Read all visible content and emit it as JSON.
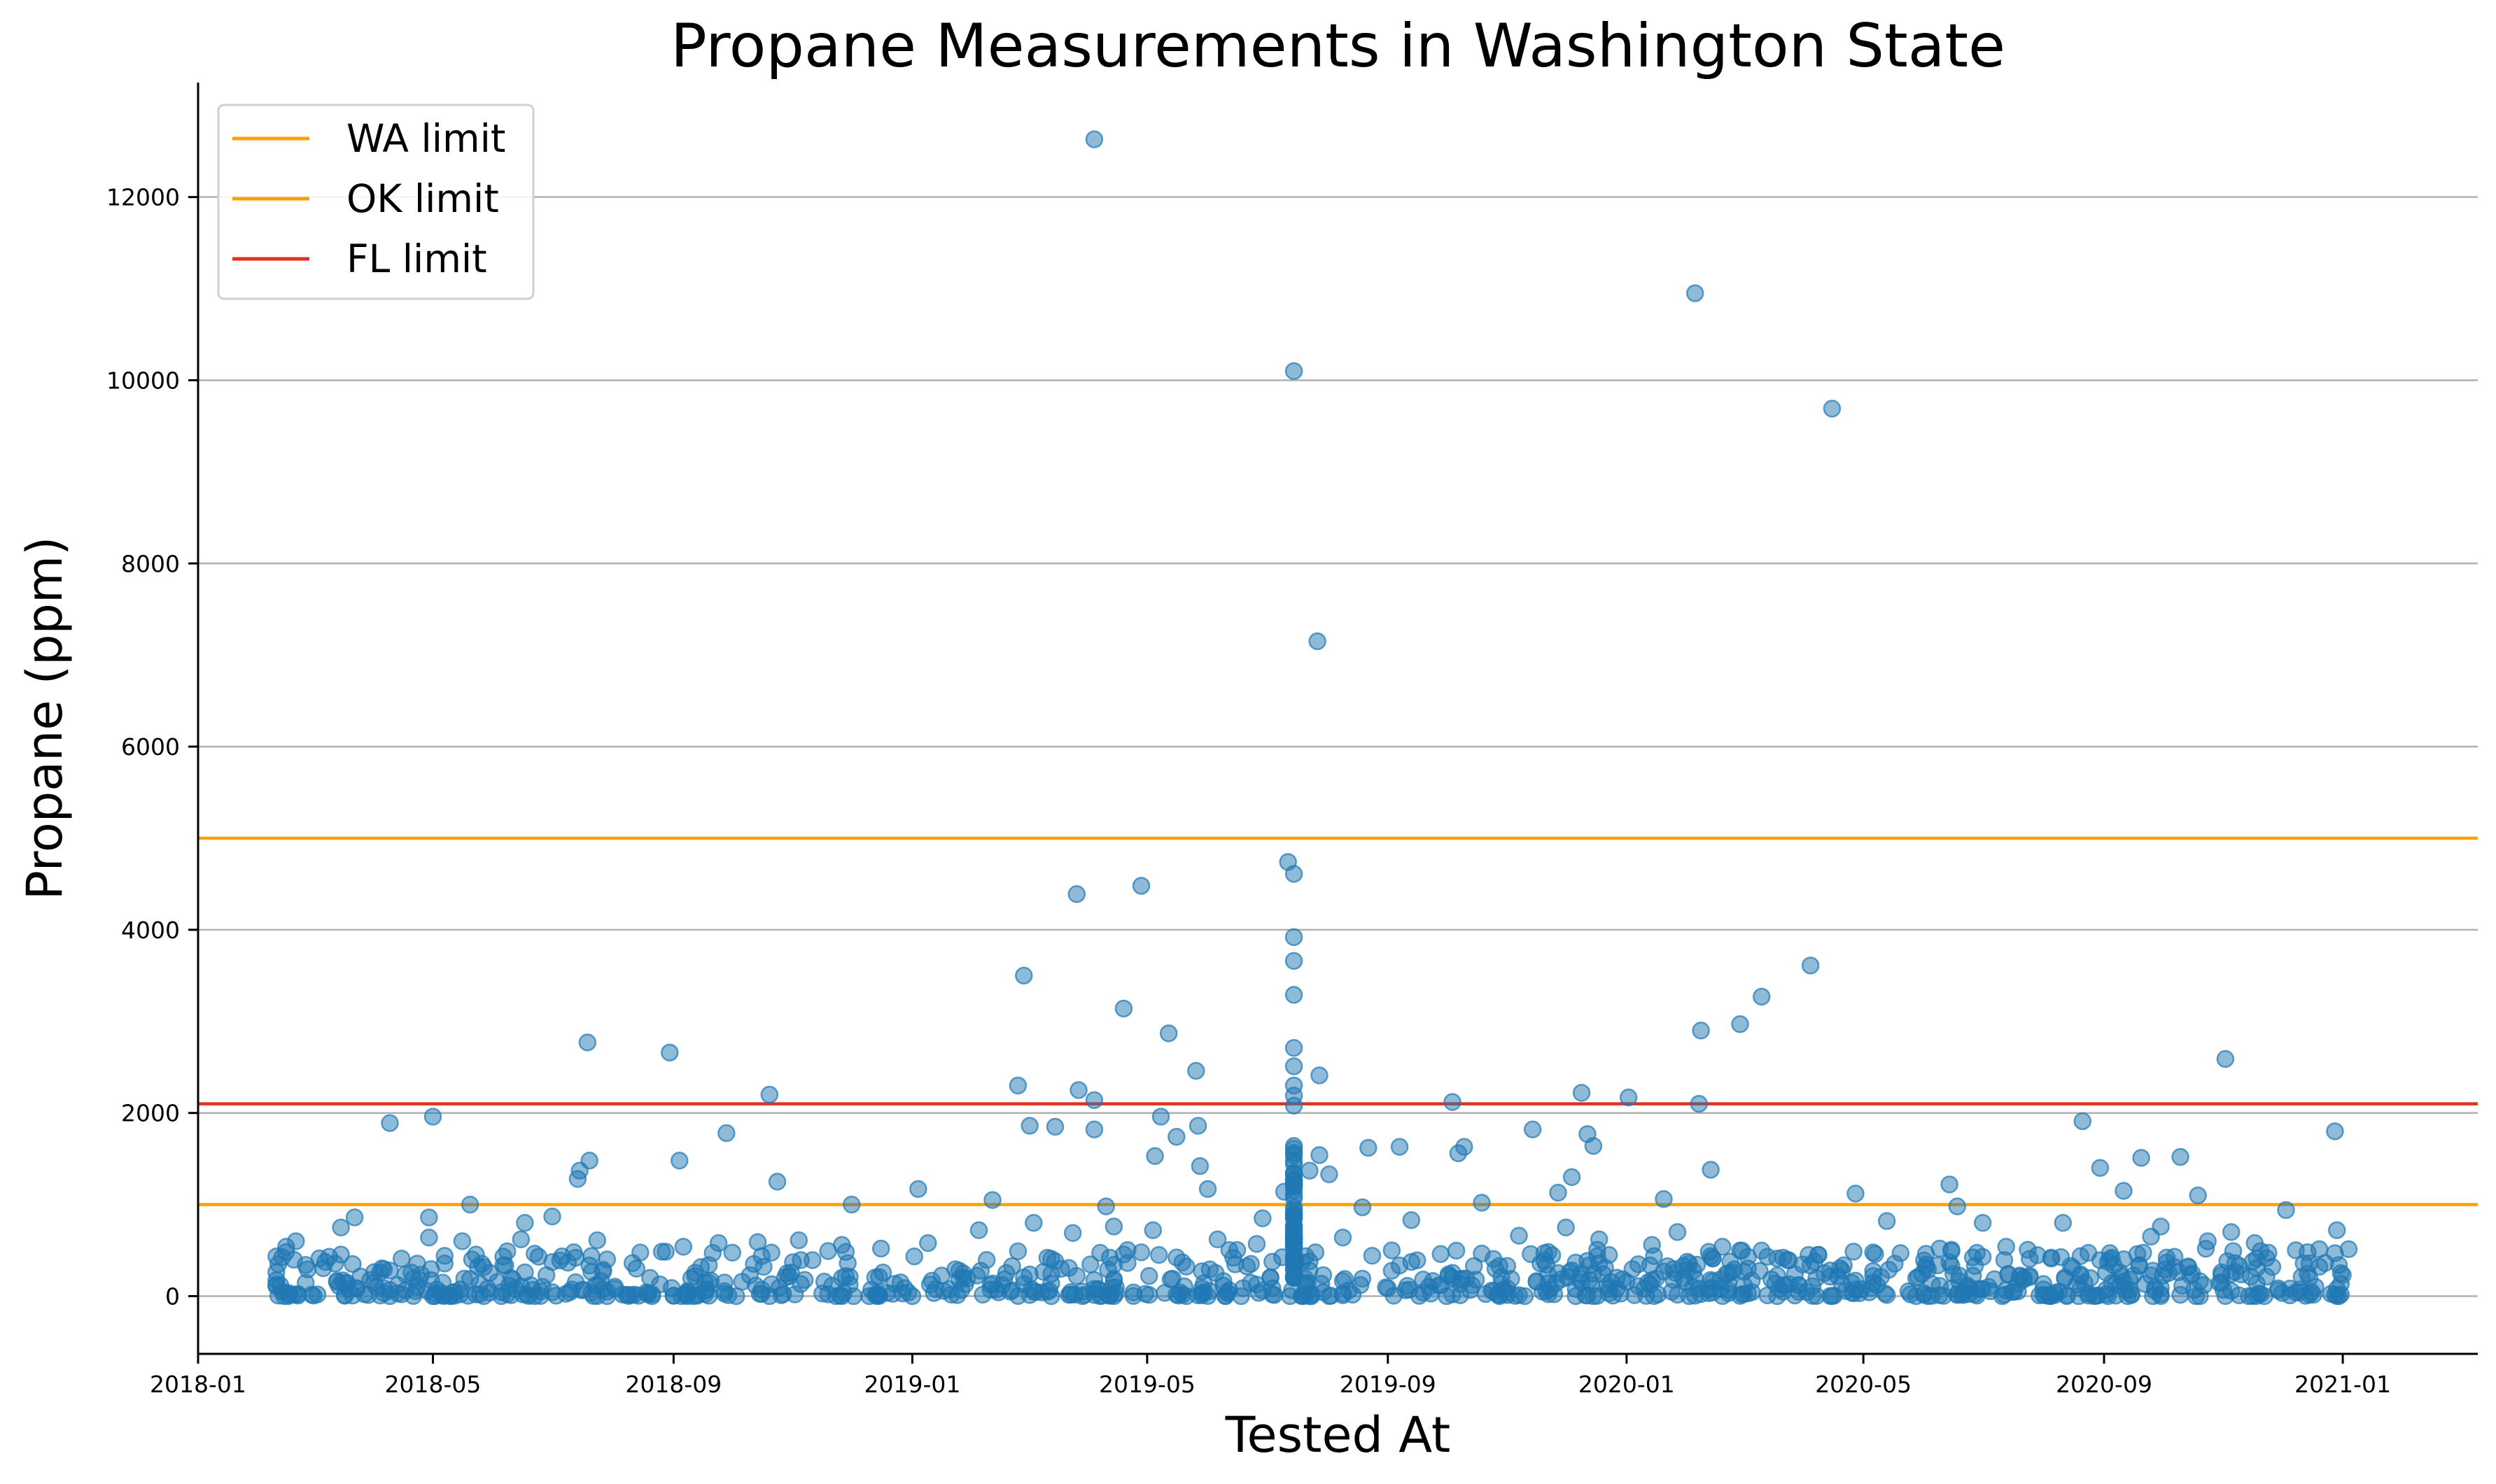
{
  "chart_data": {
    "type": "scatter",
    "title": "Propane Measurements in Washington State",
    "xlabel": "Tested At",
    "ylabel": "Propane (ppm)",
    "x_range": [
      "2018-01-01",
      "2021-03-11"
    ],
    "y_range": [
      -630,
      13250
    ],
    "x_ticks": [
      "2018-01",
      "2018-05",
      "2018-09",
      "2019-01",
      "2019-05",
      "2019-09",
      "2020-01",
      "2020-05",
      "2020-09",
      "2021-01"
    ],
    "y_ticks": [
      0,
      2000,
      4000,
      6000,
      8000,
      10000,
      12000
    ],
    "grid": "horizontal",
    "legend_position": "top-left",
    "point_color": "#1f77b4",
    "reference_lines": [
      {
        "name": "WA limit",
        "value": 5000,
        "color": "#ff9f00"
      },
      {
        "name": "OK limit",
        "value": 1000,
        "color": "#ff9f00"
      },
      {
        "name": "FL limit",
        "value": 2100,
        "color": "#e03020"
      }
    ],
    "series": [
      {
        "type": "scatter",
        "points": [
          [
            "2019-04-04",
            12630
          ],
          [
            "2020-02-05",
            10950
          ],
          [
            "2019-07-15",
            10100
          ],
          [
            "2020-04-15",
            9690
          ],
          [
            "2019-07-27",
            7150
          ],
          [
            "2019-07-12",
            4740
          ],
          [
            "2019-07-15",
            4610
          ],
          [
            "2019-04-28",
            4480
          ],
          [
            "2019-03-26",
            4390
          ],
          [
            "2019-07-15",
            3920
          ],
          [
            "2019-07-15",
            3660
          ],
          [
            "2020-04-04",
            3610
          ],
          [
            "2019-02-27",
            3500
          ],
          [
            "2019-07-15",
            3290
          ],
          [
            "2020-03-10",
            3270
          ],
          [
            "2019-04-19",
            3140
          ],
          [
            "2020-02-28",
            2970
          ],
          [
            "2020-02-08",
            2900
          ],
          [
            "2019-05-12",
            2870
          ],
          [
            "2018-07-19",
            2770
          ],
          [
            "2019-07-15",
            2710
          ],
          [
            "2018-08-30",
            2660
          ],
          [
            "2020-11-02",
            2590
          ],
          [
            "2019-07-15",
            2510
          ],
          [
            "2019-05-26",
            2460
          ],
          [
            "2019-07-28",
            2410
          ],
          [
            "2019-07-15",
            2300
          ],
          [
            "2019-02-24",
            2300
          ],
          [
            "2019-03-27",
            2250
          ],
          [
            "2020-01-02",
            2170
          ],
          [
            "2019-12-09",
            2220
          ],
          [
            "2018-10-20",
            2200
          ],
          [
            "2019-07-15",
            2190
          ],
          [
            "2019-04-04",
            2140
          ],
          [
            "2019-10-04",
            2120
          ],
          [
            "2020-02-07",
            2100
          ],
          [
            "2019-07-15",
            2080
          ],
          [
            "2019-05-08",
            1960
          ],
          [
            "2018-05-01",
            1960
          ],
          [
            "2018-04-09",
            1890
          ],
          [
            "2020-08-21",
            1910
          ],
          [
            "2019-03-02",
            1860
          ],
          [
            "2019-05-27",
            1860
          ],
          [
            "2019-04-04",
            1820
          ],
          [
            "2019-11-14",
            1820
          ],
          [
            "2019-12-12",
            1770
          ],
          [
            "2018-09-28",
            1780
          ],
          [
            "2020-12-28",
            1800
          ],
          [
            "2019-05-16",
            1740
          ],
          [
            "2019-09-07",
            1630
          ],
          [
            "2019-10-10",
            1630
          ],
          [
            "2019-08-22",
            1620
          ],
          [
            "2019-07-15",
            1610
          ],
          [
            "2019-12-15",
            1640
          ],
          [
            "2019-07-28",
            1540
          ],
          [
            "2019-10-07",
            1560
          ],
          [
            "2020-09-20",
            1510
          ],
          [
            "2020-10-10",
            1520
          ],
          [
            "2019-05-05",
            1530
          ],
          [
            "2018-07-20",
            1480
          ],
          [
            "2018-09-04",
            1480
          ],
          [
            "2019-03-15",
            1850
          ],
          [
            "2019-05-28",
            1420
          ],
          [
            "2019-07-23",
            1370
          ],
          [
            "2019-08-02",
            1330
          ],
          [
            "2020-02-13",
            1380
          ],
          [
            "2018-07-15",
            1370
          ],
          [
            "2018-07-14",
            1280
          ],
          [
            "2018-10-24",
            1250
          ],
          [
            "2019-12-04",
            1300
          ],
          [
            "2020-06-14",
            1220
          ],
          [
            "2020-08-30",
            1400
          ],
          [
            "2020-04-27",
            1120
          ],
          [
            "2019-01-04",
            1170
          ],
          [
            "2019-06-01",
            1170
          ],
          [
            "2019-11-27",
            1130
          ],
          [
            "2020-01-20",
            1060
          ],
          [
            "2020-09-11",
            1150
          ],
          [
            "2020-10-19",
            1100
          ],
          [
            "2018-12-01",
            1000
          ],
          [
            "2019-07-10",
            1140
          ],
          [
            "2019-08-19",
            970
          ],
          [
            "2019-10-19",
            1020
          ],
          [
            "2020-06-18",
            980
          ],
          [
            "2020-12-03",
            940
          ],
          [
            "2018-05-20",
            1000
          ],
          [
            "2019-02-11",
            1050
          ],
          [
            "2019-04-10",
            980
          ],
          [
            "2020-08-11",
            800
          ],
          [
            "2019-09-13",
            830
          ],
          [
            "2020-05-13",
            820
          ],
          [
            "2018-07-01",
            870
          ],
          [
            "2018-03-22",
            860
          ],
          [
            "2018-03-15",
            750
          ],
          [
            "2018-06-17",
            800
          ],
          [
            "2018-04-29",
            860
          ],
          [
            "2019-06-29",
            850
          ],
          [
            "2020-07-01",
            800
          ],
          [
            "2020-09-30",
            760
          ],
          [
            "2020-11-05",
            700
          ],
          [
            "2020-12-29",
            720
          ],
          [
            "2019-11-07",
            660
          ],
          [
            "2020-01-27",
            700
          ],
          [
            "2019-12-01",
            750
          ],
          [
            "2018-02-15",
            540
          ],
          [
            "2018-02-20",
            600
          ],
          [
            "2018-03-09",
            430
          ],
          [
            "2018-04-29",
            640
          ],
          [
            "2018-05-16",
            600
          ],
          [
            "2018-06-08",
            490
          ],
          [
            "2018-06-15",
            620
          ],
          [
            "2018-07-24",
            610
          ],
          [
            "2018-08-13",
            300
          ],
          [
            "2018-09-06",
            540
          ],
          [
            "2018-09-24",
            580
          ],
          [
            "2018-10-14",
            590
          ],
          [
            "2018-11-04",
            610
          ],
          [
            "2018-11-26",
            560
          ],
          [
            "2018-12-16",
            520
          ],
          [
            "2019-01-09",
            580
          ],
          [
            "2019-02-04",
            720
          ],
          [
            "2019-03-04",
            800
          ],
          [
            "2019-03-24",
            690
          ],
          [
            "2019-04-14",
            760
          ],
          [
            "2019-05-04",
            720
          ],
          [
            "2019-06-06",
            620
          ],
          [
            "2019-06-26",
            570
          ],
          [
            "2019-08-09",
            640
          ],
          [
            "2019-09-03",
            500
          ],
          [
            "2019-09-28",
            460
          ],
          [
            "2019-10-28",
            330
          ],
          [
            "2019-11-20",
            470
          ],
          [
            "2019-12-18",
            620
          ],
          [
            "2020-01-14",
            560
          ],
          [
            "2020-02-19",
            540
          ],
          [
            "2020-03-13",
            430
          ],
          [
            "2020-04-08",
            450
          ],
          [
            "2020-05-20",
            470
          ],
          [
            "2020-06-09",
            520
          ],
          [
            "2020-07-13",
            540
          ],
          [
            "2020-08-05",
            420
          ],
          [
            "2020-09-04",
            470
          ],
          [
            "2020-09-25",
            650
          ],
          [
            "2020-10-24",
            600
          ],
          [
            "2020-11-17",
            580
          ],
          [
            "2020-12-14",
            480
          ],
          [
            "2020-12-30",
            340
          ],
          [
            "2021-01-01",
            230
          ],
          [
            "2018-04-04",
            260
          ],
          [
            "2018-05-24",
            320
          ],
          [
            "2018-08-20",
            200
          ],
          [
            "2018-12-26",
            150
          ],
          [
            "2019-10-16",
            180
          ],
          [
            "2020-03-27",
            240
          ],
          [
            "2020-07-22",
            200
          ],
          [
            "2020-10-31",
            260
          ]
        ]
      }
    ]
  }
}
